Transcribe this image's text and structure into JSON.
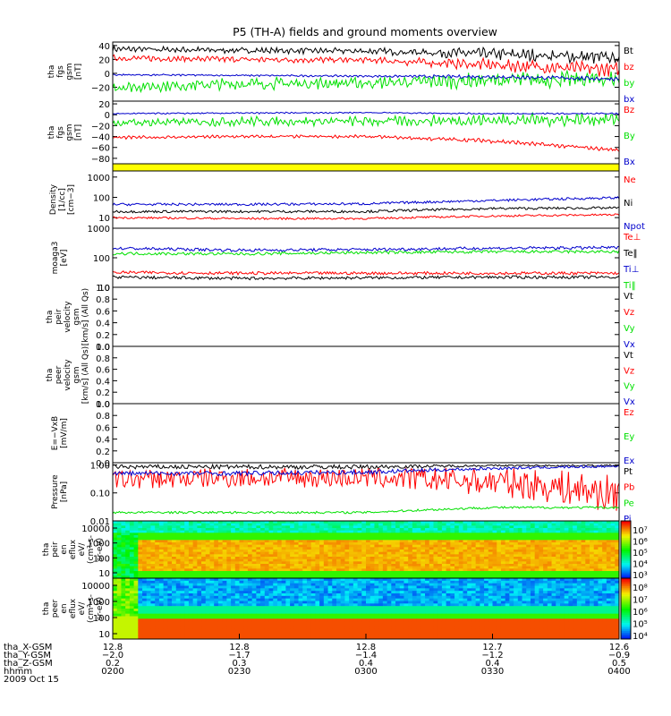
{
  "title": "P5 (TH-A) fields and ground moments overview",
  "colors": {
    "black": "#000000",
    "red": "#ff0000",
    "green": "#00e000",
    "blue": "#0000cc",
    "yellow": "#ffff00"
  },
  "time_axis": {
    "ticks": [
      "0200",
      "0230",
      "0300",
      "0330",
      "0400"
    ],
    "rows": [
      {
        "label": "tha_X-GSM",
        "values": [
          "12.8",
          "12.8",
          "12.8",
          "12.7",
          "12.6"
        ]
      },
      {
        "label": "tha_Y-GSM",
        "values": [
          "-2.0",
          "-1.7",
          "-1.4",
          "-1.2",
          "-0.9"
        ]
      },
      {
        "label": "tha_Z-GSM",
        "values": [
          "0.2",
          "0.3",
          "0.4",
          "0.4",
          "0.5"
        ]
      },
      {
        "label": "hhmm",
        "values": [
          "0200",
          "0230",
          "0300",
          "0330",
          "0400"
        ]
      }
    ],
    "date": "2009 Oct 15"
  },
  "chart_data": [
    {
      "type": "line",
      "ylabel": [
        "tha",
        "fgs",
        "gsm",
        "[nT]"
      ],
      "ylim": [
        -40,
        45
      ],
      "yticks": [
        "40",
        "20",
        "0",
        "−20"
      ],
      "x": [
        "0200",
        "0230",
        "0300",
        "0330",
        "0400"
      ],
      "series": [
        {
          "name": "Bt",
          "color": "black",
          "values": [
            35,
            33,
            32,
            28,
            22
          ],
          "amp": [
            3,
            3,
            3,
            6,
            7
          ]
        },
        {
          "name": "bz",
          "color": "red",
          "values": [
            22,
            20,
            19,
            12,
            5
          ],
          "amp": [
            3,
            3,
            3,
            6,
            7
          ]
        },
        {
          "name": "by",
          "color": "green",
          "values": [
            -20,
            -15,
            -14,
            -10,
            -8
          ],
          "amp": [
            5,
            6,
            6,
            8,
            8
          ]
        },
        {
          "name": "bx",
          "color": "blue",
          "values": [
            -2,
            -3,
            -4,
            -5,
            -8
          ],
          "amp": [
            1,
            1,
            1,
            2,
            2
          ]
        }
      ]
    },
    {
      "type": "line",
      "ylabel": [
        "tha",
        "fgs",
        "gsm",
        "[nT]"
      ],
      "ylim": [
        -90,
        25
      ],
      "yticks": [
        "20",
        "0",
        "−20",
        "−40",
        "−60",
        "−80"
      ],
      "x": [
        "0200",
        "0230",
        "0300",
        "0330",
        "0400"
      ],
      "series": [
        {
          "name": "Bz",
          "color": "red",
          "values": [
            -42,
            -40,
            -40,
            -48,
            -65
          ],
          "amp": [
            2,
            2,
            2,
            3,
            2
          ]
        },
        {
          "name": "By",
          "color": "green",
          "values": [
            -15,
            -12,
            -12,
            -10,
            -8
          ],
          "amp": [
            5,
            6,
            6,
            8,
            8
          ]
        },
        {
          "name": "Bx",
          "color": "blue",
          "values": [
            2,
            3,
            4,
            2,
            2
          ],
          "amp": [
            1,
            1,
            1,
            1,
            1
          ]
        }
      ]
    },
    {
      "type": "area",
      "ylabel": [],
      "series": [
        {
          "name": "",
          "color": "yellow"
        }
      ]
    },
    {
      "type": "line",
      "log": true,
      "ylabel": [
        "Density",
        "[1/cc]",
        "[cm−3]"
      ],
      "ylim": [
        3,
        2000
      ],
      "yticks": [
        "1000",
        "100",
        "10"
      ],
      "x": [
        "0200",
        "0230",
        "0300",
        "0330",
        "0400"
      ],
      "series": [
        {
          "name": "Ne",
          "color": "red",
          "values": [
            10,
            9,
            9,
            12,
            14
          ],
          "amp": [
            0.05,
            0.05,
            0.05,
            0.05,
            0.05
          ]
        },
        {
          "name": "Ni",
          "color": "black",
          "values": [
            20,
            20,
            20,
            28,
            30
          ],
          "amp": [
            0.06,
            0.06,
            0.06,
            0.06,
            0.06
          ]
        },
        {
          "name": "Npot",
          "color": "blue",
          "values": [
            45,
            45,
            48,
            70,
            95
          ],
          "amp": [
            0.06,
            0.06,
            0.06,
            0.06,
            0.06
          ]
        }
      ]
    },
    {
      "type": "line",
      "log": true,
      "ylabel": [
        "moaga3",
        "[eV]"
      ],
      "ylim": [
        10,
        1000
      ],
      "yticks": [
        "1000",
        "100",
        "10"
      ],
      "x": [
        "0200",
        "0230",
        "0300",
        "0330",
        "0400"
      ],
      "series": [
        {
          "name": "Te⊥",
          "color": "red",
          "values": [
            32,
            30,
            30,
            30,
            30
          ],
          "amp": [
            0.05,
            0.05,
            0.05,
            0.05,
            0.05
          ]
        },
        {
          "name": "Te‖",
          "color": "black",
          "values": [
            22,
            20,
            21,
            22,
            22
          ],
          "amp": [
            0.05,
            0.05,
            0.05,
            0.05,
            0.05
          ]
        },
        {
          "name": "Ti⊥",
          "color": "blue",
          "values": [
            210,
            180,
            190,
            210,
            220
          ],
          "amp": [
            0.05,
            0.05,
            0.05,
            0.05,
            0.05
          ]
        },
        {
          "name": "Ti‖",
          "color": "green",
          "values": [
            140,
            135,
            150,
            160,
            160
          ],
          "amp": [
            0.05,
            0.05,
            0.05,
            0.05,
            0.05
          ]
        }
      ]
    },
    {
      "type": "line",
      "ylabel": [
        "tha",
        "peir",
        "velocity",
        "gsm",
        "[km/s] (All Qs)"
      ],
      "ylim": [
        0,
        1
      ],
      "yticks": [
        "1.0",
        "0.8",
        "0.6",
        "0.4",
        "0.2",
        "0.0"
      ],
      "series": [
        {
          "name": "Vt",
          "color": "black"
        },
        {
          "name": "Vz",
          "color": "red"
        },
        {
          "name": "Vy",
          "color": "green"
        },
        {
          "name": "Vx",
          "color": "blue"
        }
      ]
    },
    {
      "type": "line",
      "ylabel": [
        "tha",
        "peer",
        "velocity",
        "gsm",
        "[km/s] (All Qs)"
      ],
      "ylim": [
        0,
        1
      ],
      "yticks": [
        "1.0",
        "0.8",
        "0.6",
        "0.4",
        "0.2",
        "0.0"
      ],
      "series": [
        {
          "name": "Vt",
          "color": "black"
        },
        {
          "name": "Vz",
          "color": "red"
        },
        {
          "name": "Vy",
          "color": "green"
        },
        {
          "name": "Vx",
          "color": "blue"
        }
      ]
    },
    {
      "type": "line",
      "ylabel": [
        "E=−VxB",
        "[mV/m]"
      ],
      "ylim": [
        0,
        1
      ],
      "yticks": [
        "1.0",
        "0.8",
        "0.6",
        "0.4",
        "0.2",
        "0.0"
      ],
      "series": [
        {
          "name": "Ez",
          "color": "red"
        },
        {
          "name": "Ey",
          "color": "green"
        },
        {
          "name": "Ex",
          "color": "blue"
        }
      ]
    },
    {
      "type": "line",
      "log": true,
      "ylabel": [
        "Pressure",
        "[nPa]"
      ],
      "ylim": [
        0.01,
        1.2
      ],
      "yticks": [
        "1.00",
        "0.10",
        "0.01"
      ],
      "x": [
        "0200",
        "0230",
        "0300",
        "0330",
        "0400"
      ],
      "series": [
        {
          "name": "Pt",
          "color": "black",
          "values": [
            0.85,
            0.85,
            0.85,
            0.95,
            0.95
          ],
          "amp": [
            0.08,
            0.08,
            0.08,
            0.03,
            0.03
          ]
        },
        {
          "name": "Pb",
          "color": "red",
          "values": [
            0.3,
            0.35,
            0.35,
            0.25,
            0.08
          ],
          "amp": [
            0.35,
            0.35,
            0.35,
            0.5,
            0.7
          ]
        },
        {
          "name": "Pe",
          "color": "green",
          "values": [
            0.02,
            0.02,
            0.02,
            0.03,
            0.03
          ],
          "amp": [
            0.04,
            0.04,
            0.04,
            0.04,
            0.04
          ]
        },
        {
          "name": "Pi",
          "color": "blue",
          "values": [
            0.5,
            0.5,
            0.55,
            0.75,
            0.9
          ],
          "amp": [
            0.08,
            0.08,
            0.08,
            0.05,
            0.04
          ]
        }
      ]
    },
    {
      "type": "heatmap",
      "ylabel": [
        "tha",
        "peir",
        "en",
        "eflux",
        "eV/",
        "(cm²-s-",
        "sr-eV)"
      ],
      "yticks": [
        "10000",
        "1000",
        "100",
        "10"
      ],
      "colorbar_ticks": [
        "10⁷",
        "10⁶",
        "10⁵",
        "10⁴",
        "10³"
      ]
    },
    {
      "type": "heatmap",
      "ylabel": [
        "tha",
        "peer",
        "en",
        "eflux",
        "eV/",
        "(cm²-s-",
        "sr-eV)"
      ],
      "yticks": [
        "10000",
        "1000",
        "100",
        "10"
      ],
      "colorbar_ticks": [
        "10⁸",
        "10⁷",
        "10⁶",
        "10⁵",
        "10⁴"
      ]
    }
  ]
}
